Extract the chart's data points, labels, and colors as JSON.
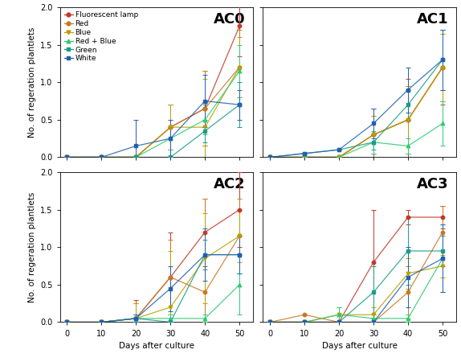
{
  "days": [
    0,
    10,
    20,
    30,
    40,
    50
  ],
  "series_labels": [
    "Fluorescent lamp",
    "Red",
    "Blue",
    "Red + Blue",
    "Green",
    "White"
  ],
  "series_colors": [
    "#c0392b",
    "#c87820",
    "#b8a000",
    "#2ecc71",
    "#1a9c8c",
    "#2060b0"
  ],
  "series_markers": [
    "o",
    "o",
    "v",
    "^",
    "s",
    "s"
  ],
  "panels": {
    "AC0": {
      "data": [
        [
          0,
          0,
          0,
          0.4,
          0.65,
          1.75
        ],
        [
          0,
          0,
          0,
          0.4,
          0.65,
          1.2
        ],
        [
          0,
          0,
          0,
          0.4,
          0.4,
          1.2
        ],
        [
          0,
          0,
          0,
          0.25,
          0.5,
          1.15
        ],
        [
          0,
          0,
          0,
          0.0,
          0.35,
          0.7
        ],
        [
          0,
          0.0,
          0.15,
          0.25,
          0.75,
          0.7
        ]
      ],
      "errors": [
        [
          0,
          0,
          0,
          0.3,
          0.5,
          0.4
        ],
        [
          0,
          0,
          0,
          0.3,
          0.5,
          0.5
        ],
        [
          0,
          0,
          0,
          0.3,
          0.65,
          0.4
        ],
        [
          0,
          0,
          0,
          0.15,
          0.2,
          0.35
        ],
        [
          0,
          0,
          0,
          0.0,
          0.15,
          0.3
        ],
        [
          0,
          0,
          0.35,
          0.25,
          0.35,
          0.2
        ]
      ]
    },
    "AC1": {
      "data": [
        [
          0,
          0,
          0,
          0.3,
          0.5,
          1.2
        ],
        [
          0,
          0,
          0,
          0.3,
          0.5,
          1.2
        ],
        [
          0,
          0,
          0,
          0.3,
          0.5,
          1.2
        ],
        [
          0,
          0,
          0,
          0.2,
          0.15,
          0.45
        ],
        [
          0,
          0.05,
          0.1,
          0.2,
          0.7,
          1.3
        ],
        [
          0,
          0.05,
          0.1,
          0.45,
          0.9,
          1.3
        ]
      ],
      "errors": [
        [
          0,
          0,
          0,
          0.35,
          0.55,
          0.5
        ],
        [
          0,
          0,
          0,
          0.25,
          0.45,
          0.45
        ],
        [
          0,
          0,
          0,
          0.25,
          0.45,
          0.45
        ],
        [
          0,
          0,
          0,
          0.15,
          0.1,
          0.3
        ],
        [
          0,
          0,
          0,
          0.1,
          0.2,
          0.4
        ],
        [
          0,
          0,
          0,
          0.2,
          0.3,
          0.4
        ]
      ]
    },
    "AC2": {
      "data": [
        [
          0,
          0,
          0.05,
          0.6,
          1.2,
          1.5
        ],
        [
          0,
          0,
          0.05,
          0.6,
          0.4,
          1.15
        ],
        [
          0,
          0,
          0.05,
          0.2,
          0.85,
          1.15
        ],
        [
          0,
          0,
          0.05,
          0.05,
          0.05,
          0.5
        ],
        [
          0,
          0,
          0.05,
          0.0,
          0.9,
          0.9
        ],
        [
          0,
          0,
          0.05,
          0.45,
          0.9,
          0.9
        ]
      ],
      "errors": [
        [
          0,
          0,
          0.25,
          0.6,
          0.45,
          0.5
        ],
        [
          0,
          0,
          0.2,
          0.5,
          1.25,
          0.5
        ],
        [
          0,
          0,
          0.2,
          0.75,
          0.6,
          0.35
        ],
        [
          0,
          0,
          0.05,
          0.05,
          0.05,
          0.4
        ],
        [
          0,
          0,
          0.05,
          0.0,
          0.2,
          0.25
        ],
        [
          0,
          0,
          0.05,
          0.3,
          0.35,
          0.25
        ]
      ]
    },
    "AC3": {
      "data": [
        [
          0,
          0,
          0,
          0.8,
          1.4,
          1.4
        ],
        [
          0,
          0.1,
          0.0,
          0.0,
          0.4,
          1.2
        ],
        [
          0,
          0,
          0.1,
          0.1,
          0.65,
          0.75
        ],
        [
          0,
          0,
          0.1,
          0.05,
          0.05,
          0.85
        ],
        [
          0,
          0,
          0.0,
          0.4,
          0.95,
          0.95
        ],
        [
          0,
          0,
          0.0,
          0.0,
          0.6,
          0.85
        ]
      ],
      "errors": [
        [
          0,
          0,
          0,
          0.7,
          0.1,
          0.15
        ],
        [
          0,
          0,
          0.1,
          0.0,
          0.35,
          0.35
        ],
        [
          0,
          0,
          0.1,
          0.1,
          0.2,
          0.15
        ],
        [
          0,
          0,
          0.1,
          0.05,
          0.05,
          0.45
        ],
        [
          0,
          0,
          0,
          0.35,
          0.45,
          0.2
        ],
        [
          0,
          0,
          0,
          0,
          0.4,
          0.45
        ]
      ]
    }
  },
  "ylim": [
    0,
    2.0
  ],
  "yticks": [
    0.0,
    0.5,
    1.0,
    1.5,
    2.0
  ],
  "ylabel": "No. of regeration plantlets",
  "xlabel": "Days after culture",
  "legend_fontsize": 6.5,
  "tick_fontsize": 7,
  "label_fontsize": 7.5,
  "title_fontsize": 13
}
